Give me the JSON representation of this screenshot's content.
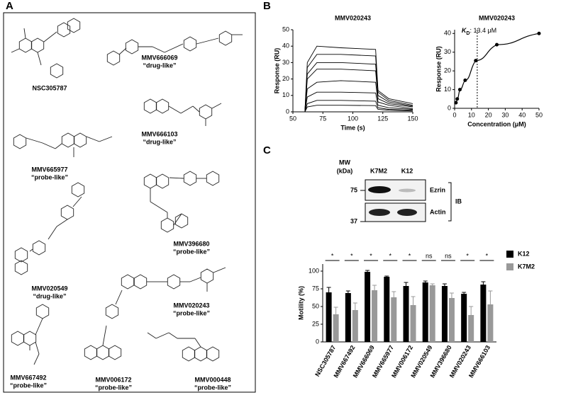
{
  "figure": {
    "panel_a": {
      "label": "A",
      "compounds": [
        {
          "name": "NSC305787"
        },
        {
          "name": "MMV666069",
          "class": "“drug-like”"
        },
        {
          "name": "MMV666103",
          "class": "“drug-like”"
        },
        {
          "name": "MMV665977",
          "class": "“probe-like”"
        },
        {
          "name": "MMV396680",
          "class": "“probe-like”"
        },
        {
          "name": "MMV020549",
          "class": "“drug-like”"
        },
        {
          "name": "MMV020243",
          "class": "“probe-like”"
        },
        {
          "name": "MMV667492",
          "class": "“probe-like”"
        },
        {
          "name": "MMV006172",
          "class": "“probe-like”"
        },
        {
          "name": "MMV000448",
          "class": "“probe-like”"
        }
      ]
    },
    "panel_b": {
      "label": "B"
    },
    "panel_c": {
      "label": "C",
      "blot": {
        "mw_label": "MW",
        "mw_unit": "(kDa)",
        "lanes": [
          "K7M2",
          "K12"
        ],
        "markers": [
          75,
          37
        ],
        "bands": [
          "Ezrin",
          "Actin"
        ],
        "method": "IB"
      }
    }
  },
  "chart_data": [
    {
      "type": "line",
      "title": "MMV020243",
      "x_label": "Time (s)",
      "y_label": "Response (RU)",
      "x": [
        50,
        60,
        62,
        70,
        90,
        119,
        121,
        130,
        150
      ],
      "series": [
        {
          "color": "#000000",
          "values": [
            0,
            0,
            30,
            40,
            39,
            38,
            13,
            8,
            5
          ]
        },
        {
          "color": "#000000",
          "values": [
            0,
            0,
            27,
            35,
            35,
            34,
            12,
            7,
            4
          ]
        },
        {
          "color": "#000000",
          "values": [
            0,
            0,
            23,
            30,
            30,
            29,
            10,
            6,
            3.5
          ]
        },
        {
          "color": "#000000",
          "values": [
            0,
            0,
            20,
            26,
            26,
            25,
            8,
            5,
            3
          ]
        },
        {
          "color": "#000000",
          "values": [
            0,
            0,
            14,
            18,
            19,
            18,
            6,
            4,
            2
          ]
        },
        {
          "color": "#000000",
          "values": [
            0,
            0,
            9,
            12,
            12,
            11.5,
            4,
            2.5,
            1.5
          ]
        },
        {
          "color": "#000000",
          "values": [
            0,
            0,
            5,
            7,
            7,
            6.5,
            2.5,
            1.5,
            1
          ]
        },
        {
          "color": "#000000",
          "values": [
            0,
            0,
            3,
            4,
            4,
            3.8,
            1.5,
            1,
            0.5
          ]
        }
      ],
      "xlim": [
        50,
        150
      ],
      "xticks": [
        50,
        75,
        100,
        125,
        150
      ],
      "ylim": [
        0,
        50
      ],
      "yticks": [
        0,
        10,
        20,
        30,
        40,
        50
      ]
    },
    {
      "type": "scatter",
      "title": "MMV020243",
      "x_label": "Concentration (μM)",
      "y_label": "Response (RU)",
      "x": [
        0.78,
        1.56,
        3.125,
        6.25,
        12.5,
        25,
        50
      ],
      "values": [
        3,
        5,
        10,
        15,
        25.5,
        34,
        40
      ],
      "color": "#000000",
      "kd": {
        "symbol": "K",
        "subscript": "D",
        "value": 13.4,
        "label": ": 13.4 μM"
      },
      "xlim": [
        0,
        50
      ],
      "xticks": [
        0,
        10,
        20,
        30,
        40,
        50
      ],
      "ylim": [
        0,
        42
      ],
      "yticks": [
        0,
        10,
        20,
        30,
        40
      ]
    },
    {
      "type": "bar",
      "y_label": "Motility (%)",
      "categories": [
        "NSC305787",
        "MMV667492",
        "MMV666069",
        "MMV665977",
        "MMV006172",
        "MMV020549",
        "MMV396680",
        "MMV020243",
        "MMV666103"
      ],
      "series": [
        {
          "name": "K12",
          "color": "#000000",
          "values": [
            70,
            69,
            99,
            92,
            79,
            84,
            79,
            68,
            81
          ],
          "errors": [
            7,
            3,
            2,
            1,
            5,
            2,
            3,
            2,
            4
          ]
        },
        {
          "name": "K7M2",
          "color": "#999999",
          "values": [
            39,
            45,
            73,
            63,
            52,
            80,
            62,
            38,
            53
          ],
          "errors": [
            10,
            10,
            7,
            8,
            12,
            2,
            7,
            12,
            19
          ]
        }
      ],
      "significance": [
        "*",
        "*",
        "*",
        "*",
        "*",
        "ns",
        "ns",
        "*",
        "*"
      ],
      "ylim": [
        0,
        110
      ],
      "yticks": [
        0,
        25,
        50,
        75,
        100
      ],
      "legend": "right"
    }
  ]
}
